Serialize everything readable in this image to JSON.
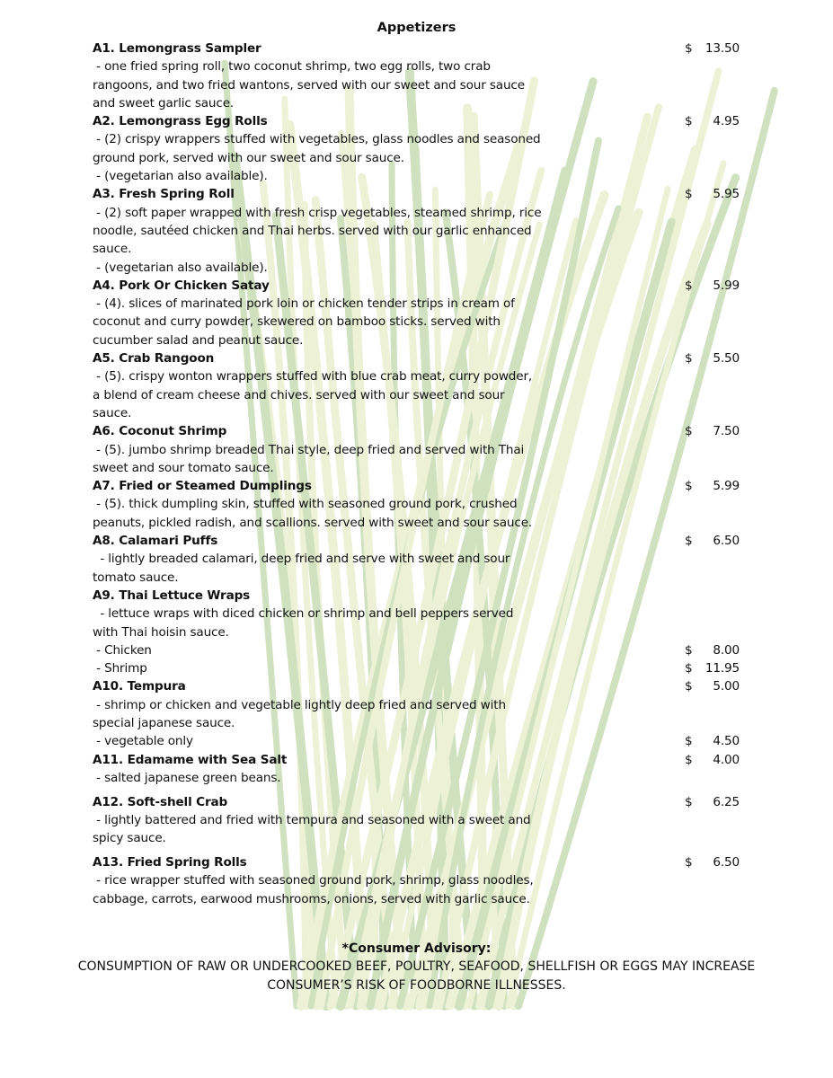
{
  "heading": "Appetizers",
  "currency": "$",
  "items": [
    {
      "title": "A1. Lemongrass Sampler",
      "price": "13.50",
      "lines": [
        " - one fried spring roll, two coconut shrimp, two egg rolls, two crab",
        "rangoons, and two fried wantons, served with our sweet and sour sauce",
        "and sweet garlic sauce."
      ]
    },
    {
      "title": "A2. Lemongrass Egg Rolls",
      "price": "4.95",
      "lines": [
        " - (2) crispy wrappers stuffed with vegetables, glass noodles and seasoned",
        "ground pork, served with our sweet and sour sauce.",
        " - (vegetarian also available)."
      ]
    },
    {
      "title": "A3. Fresh Spring Roll",
      "price": "5.95",
      "lines": [
        " - (2) soft paper wrapped with fresh crisp vegetables, steamed shrimp, rice",
        "noodle, sautéed chicken and Thai herbs. served with our garlic enhanced",
        "sauce.",
        " - (vegetarian also available)."
      ]
    },
    {
      "title": "A4. Pork Or Chicken Satay",
      "price": "5.99",
      "lines": [
        " - (4). slices of marinated pork loin or chicken tender strips in cream of",
        "coconut and curry powder, skewered on bamboo sticks. served with",
        "cucumber salad and peanut sauce."
      ]
    },
    {
      "title": "A5. Crab Rangoon",
      "price": "5.50",
      "lines": [
        " - (5). crispy wonton wrappers stuffed with blue crab meat, curry powder,",
        "a blend of cream cheese and chives. served with our sweet and sour",
        "sauce."
      ]
    },
    {
      "title": "A6. Coconut Shrimp",
      "price": "7.50",
      "lines": [
        " - (5). jumbo shrimp breaded Thai style, deep fried and served with Thai",
        "sweet and sour tomato sauce."
      ]
    },
    {
      "title": "A7. Fried or Steamed Dumplings",
      "price": "5.99",
      "lines": [
        " - (5). thick dumpling skin, stuffed with seasoned ground pork, crushed",
        "peanuts, pickled radish, and scallions. served with sweet and sour sauce."
      ]
    },
    {
      "title": "A8. Calamari Puffs",
      "price": "6.50",
      "lines": [
        "  - lightly breaded calamari, deep fried and serve with sweet and sour",
        "tomato sauce."
      ]
    },
    {
      "title": "A9. Thai Lettuce Wraps",
      "price": "",
      "lines": [
        "  - lettuce wraps with diced chicken or shrimp and bell peppers served",
        "with Thai hoisin sauce."
      ],
      "options": [
        {
          "label": " - Chicken",
          "price": "8.00"
        },
        {
          "label": " - Shrimp",
          "price": "11.95"
        }
      ]
    },
    {
      "title": "A10. Tempura",
      "price": "5.00",
      "lines": [
        " - shrimp or chicken and vegetable lightly deep fried and served with",
        "special japanese sauce."
      ],
      "options": [
        {
          "label": " - vegetable only",
          "price": "4.50"
        }
      ]
    },
    {
      "title": "A11. Edamame with Sea Salt",
      "price": "4.00",
      "lines": [
        " - salted japanese green beans."
      ]
    },
    {
      "title": "A12. Soft-shell Crab",
      "price": "6.25",
      "gap": true,
      "lines": [
        " - lightly battered and fried with tempura and seasoned with a sweet and",
        "spicy sauce."
      ]
    },
    {
      "title": "A13. Fried Spring Rolls",
      "price": "6.50",
      "gap": true,
      "lines": [
        " - rice wrapper stuffed with seasoned ground pork, shrimp, glass noodles,",
        "cabbage, carrots, earwood mushrooms, onions, served with garlic sauce."
      ]
    }
  ],
  "advisory": {
    "title": "*Consumer Advisory:",
    "lines": [
      "CONSUMPTION OF RAW OR UNDERCOOKED BEEF, POULTRY, SEAFOOD, SHELLFISH OR EGGS MAY INCREASE",
      "CONSUMER’S RISK OF FOODBORNE ILLNESSES."
    ]
  },
  "background_image": "lemongrass-bundle",
  "colors": {
    "text": "#111111",
    "stalk_light": "#dfe9b8",
    "stalk_dark": "#a9c98a"
  }
}
